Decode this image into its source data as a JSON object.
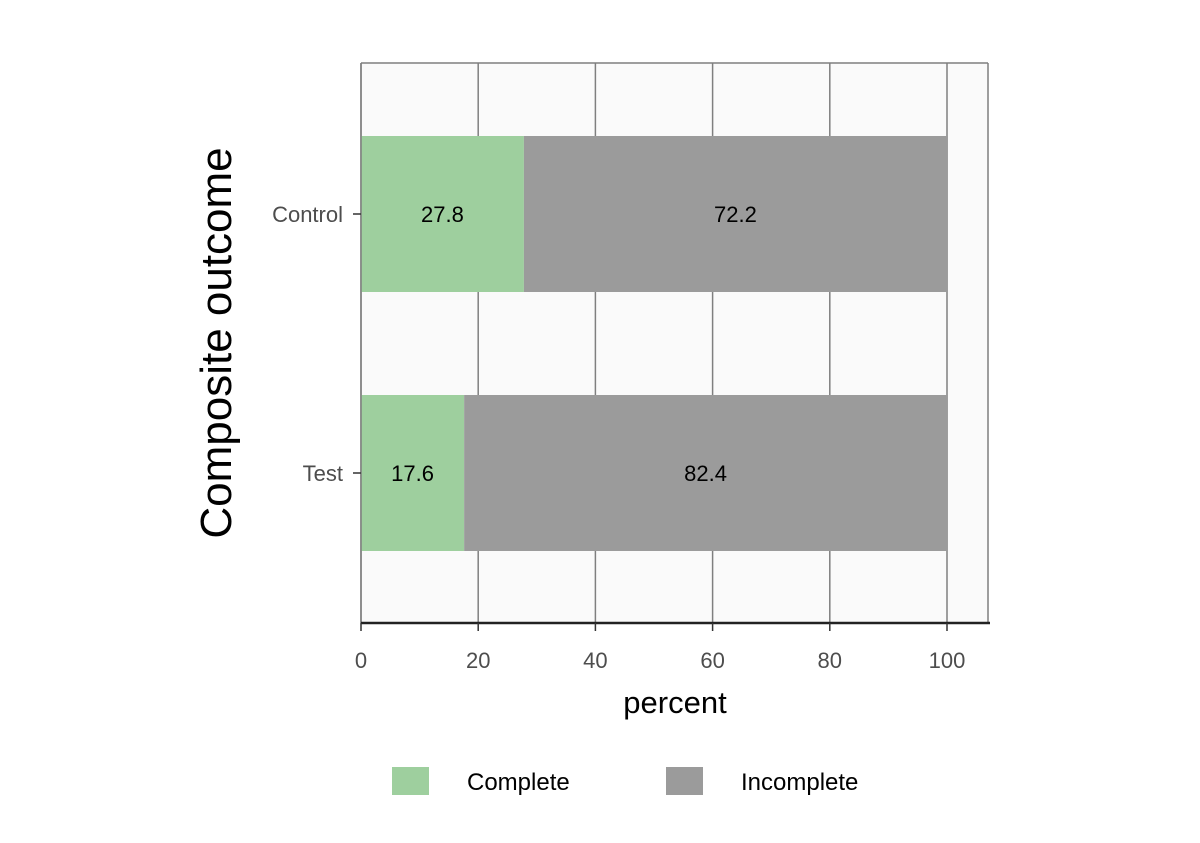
{
  "chart_data": {
    "type": "bar",
    "orientation": "horizontal",
    "stacked": true,
    "categories": [
      "Control",
      "Test"
    ],
    "series": [
      {
        "name": "Complete",
        "values": [
          27.8,
          17.6
        ],
        "color": "#9ecf9e"
      },
      {
        "name": "Incomplete",
        "values": [
          72.2,
          82.4
        ],
        "color": "#9b9b9b"
      }
    ],
    "data_labels": [
      [
        "27.8",
        "17.6"
      ],
      [
        "72.2",
        "82.4"
      ]
    ],
    "xlabel": "percent",
    "ylabel": "Composite outcome",
    "xlim": [
      0,
      107
    ],
    "xticks": [
      0,
      20,
      40,
      60,
      80,
      100
    ],
    "xtick_labels": [
      "0",
      "20",
      "40",
      "60",
      "80",
      "100"
    ],
    "grid": true,
    "legend_position": "bottom",
    "panel_background": "#fafafa",
    "grid_color": "#7f7f7f"
  }
}
